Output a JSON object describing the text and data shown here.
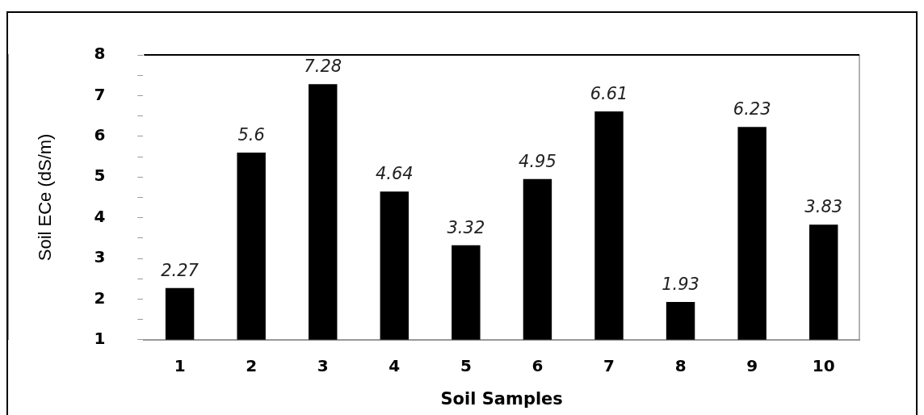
{
  "chart_data": {
    "type": "bar",
    "xlabel": "Soil Samples",
    "ylabel": "Soil ECe (dS/m)",
    "categories": [
      "1",
      "2",
      "3",
      "4",
      "5",
      "6",
      "7",
      "8",
      "9",
      "10"
    ],
    "values": [
      2.27,
      5.6,
      7.28,
      4.64,
      3.32,
      4.95,
      6.61,
      1.93,
      6.23,
      3.83
    ],
    "color": "#000000",
    "ylim": [
      1,
      8
    ],
    "yticks": [
      1,
      {
        "value": 1.5,
        "label": null
      },
      2,
      {
        "value": 2.5,
        "label": null
      },
      3,
      {
        "value": 3.5,
        "label": null
      },
      4,
      {
        "value": 4.5,
        "label": null
      },
      5,
      {
        "value": 5.5,
        "label": null
      },
      6,
      {
        "value": 6.5,
        "label": null
      },
      7,
      {
        "value": 7.5,
        "label": null
      },
      8
    ],
    "data_labels": true,
    "grid": false,
    "legend": false
  }
}
